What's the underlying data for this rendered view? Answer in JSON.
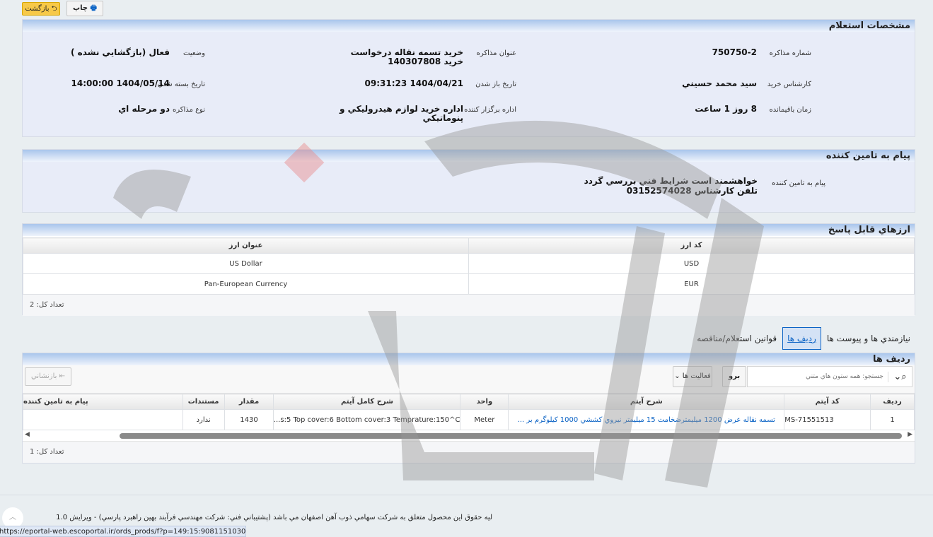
{
  "toolbar": {
    "back_label": "بازگشت",
    "print_label": "چاپ"
  },
  "colors": {
    "accent": "#0b63c5",
    "back_button": "#f7c948",
    "header_gradient": "#a9c6ec"
  },
  "details": {
    "title": "مشخصات استعلام",
    "fields": [
      {
        "label": "شماره مذاكره",
        "value": "750750-2"
      },
      {
        "label": "عنوان مذاكره",
        "value": "خريد تسمه نقاله درخواست خريد 140307808"
      },
      {
        "label": "وضعيت",
        "value": "فعال (بازگشايي نشده )"
      },
      {
        "label": "كارشناس خريد",
        "value": "سيد محمد حسيني"
      },
      {
        "label": "تاريخ باز شدن",
        "value": "1404/04/21 09:31:23"
      },
      {
        "label": "تاريخ بسته شدن",
        "value": "1404/05/14 14:00:00"
      },
      {
        "label": "زمان باقيمانده",
        "value": "8 روز 1 ساعت"
      },
      {
        "label": "اداره برگزار كننده",
        "value": "اداره خريد لوازم هيدروليكي و پنوماتيكي"
      },
      {
        "label": "نوع مذاكره",
        "value": "دو مرحله اي"
      }
    ]
  },
  "supplier_message": {
    "title": "پيام به تامين كننده",
    "label": "پيام به تامين كننده",
    "line1": "خواهشمند است شرايط فني بررسي گردد",
    "line2": "تلفن كارشناس 03152574028"
  },
  "currencies": {
    "title": "ارزهاي قابل پاسخ",
    "columns": [
      "كد ارز",
      "عنوان ارز"
    ],
    "rows": [
      [
        "USD",
        "US Dollar"
      ],
      [
        "EUR",
        "Pan-European Currency"
      ]
    ],
    "total": "تعداد كل: 2"
  },
  "tabs": [
    {
      "label": "نيازمندي ها و پيوست ها"
    },
    {
      "label": "رديف ها",
      "active": true
    },
    {
      "label": "قوانين استعلام/مناقصه"
    }
  ],
  "items": {
    "title": "رديف ها",
    "search_placeholder": "جستجو: همه ستون هاي متني",
    "go_label": "برو",
    "actions_label": "فعاليت ها",
    "reset_label": "بازنشاني",
    "columns": [
      "رديف",
      "كد آيتم",
      "شرح آيتم",
      "واحد",
      "شرح كامل آيتم",
      "مقدار",
      "مستندات",
      "پيام به تامين كننده"
    ],
    "rows": [
      [
        "1",
        "MS-71551513",
        "تسمه نقاله عرض 1200 ميليمترضخامت 15 ميليمتر نيروي كششي 1000 كيلوگرم بر ...",
        "Meter",
        "s:5 Top cover:6 Bottom cover:3 Temprature:150^C...",
        "1430",
        "ندارد",
        ""
      ]
    ],
    "total": "تعداد كل: 1"
  },
  "footer": {
    "text": "ليه حقوق اين محصول متعلق به شركت سهامي ذوب آهن اصفهان مي باشد (پشتيباني فني: شركت مهندسي فرآيند بهين راهبرد پارسي) - ويرايش 1.0"
  },
  "status_url": "https://eportal-web.escoportal.ir/ords_prods/f?p=149:15:9081151030221::::P15_A..."
}
